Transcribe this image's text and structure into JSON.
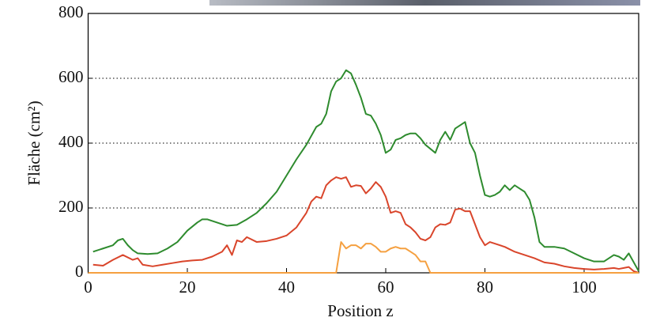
{
  "chart_data": {
    "type": "line",
    "x_label": "Position z",
    "y_label": "Fläche (cm²)",
    "xlim": [
      0,
      111
    ],
    "ylim": [
      0,
      800
    ],
    "xticks": [
      0,
      20,
      40,
      60,
      80,
      100
    ],
    "yticks": [
      0,
      200,
      400,
      600,
      800
    ],
    "grid": true,
    "series": [
      {
        "color": "#2e8b2e",
        "x": [
          1,
          3,
          5,
          6,
          7,
          8,
          9,
          10,
          12,
          14,
          16,
          18,
          20,
          22,
          23,
          24,
          26,
          28,
          30,
          32,
          34,
          36,
          38,
          40,
          42,
          44,
          46,
          47,
          48,
          49,
          50,
          51,
          52,
          53,
          54,
          55,
          56,
          57,
          58,
          59,
          60,
          61,
          62,
          63,
          64,
          65,
          66,
          67,
          68,
          70,
          71,
          72,
          73,
          74,
          76,
          77,
          78,
          79,
          80,
          81,
          82,
          83,
          84,
          85,
          86,
          87,
          88,
          89,
          90,
          91,
          92,
          94,
          96,
          98,
          100,
          102,
          104,
          106,
          107,
          108,
          109,
          111
        ],
        "values": [
          65,
          75,
          85,
          100,
          105,
          85,
          70,
          60,
          58,
          60,
          75,
          95,
          130,
          155,
          165,
          165,
          155,
          145,
          148,
          165,
          185,
          215,
          250,
          300,
          350,
          395,
          450,
          460,
          490,
          560,
          590,
          600,
          625,
          615,
          580,
          540,
          490,
          485,
          460,
          425,
          370,
          380,
          410,
          415,
          425,
          430,
          430,
          415,
          395,
          370,
          410,
          435,
          410,
          445,
          465,
          400,
          370,
          300,
          240,
          235,
          240,
          250,
          270,
          255,
          270,
          260,
          250,
          225,
          170,
          95,
          80,
          80,
          75,
          60,
          45,
          35,
          35,
          55,
          50,
          40,
          60,
          5
        ]
      },
      {
        "color": "#d9452b",
        "x": [
          1,
          3,
          5,
          7,
          9,
          10,
          11,
          13,
          15,
          17,
          19,
          21,
          23,
          25,
          27,
          28,
          29,
          30,
          31,
          32,
          34,
          36,
          38,
          40,
          42,
          44,
          45,
          46,
          47,
          48,
          49,
          50,
          51,
          52,
          53,
          54,
          55,
          56,
          57,
          58,
          59,
          60,
          61,
          62,
          63,
          64,
          65,
          66,
          67,
          68,
          69,
          70,
          71,
          72,
          73,
          74,
          75,
          76,
          77,
          78,
          79,
          80,
          81,
          82,
          84,
          86,
          88,
          90,
          92,
          94,
          96,
          98,
          100,
          102,
          104,
          106,
          107,
          108,
          109,
          110,
          111
        ],
        "values": [
          25,
          22,
          40,
          55,
          40,
          45,
          25,
          20,
          25,
          30,
          35,
          38,
          40,
          50,
          65,
          85,
          55,
          100,
          95,
          110,
          95,
          98,
          105,
          115,
          140,
          185,
          220,
          235,
          230,
          270,
          285,
          295,
          290,
          295,
          265,
          270,
          268,
          245,
          260,
          280,
          265,
          235,
          185,
          190,
          185,
          150,
          140,
          125,
          105,
          100,
          110,
          140,
          150,
          148,
          155,
          195,
          198,
          190,
          190,
          150,
          110,
          85,
          95,
          90,
          80,
          65,
          55,
          45,
          32,
          28,
          20,
          15,
          12,
          10,
          12,
          15,
          12,
          15,
          18,
          5,
          0
        ]
      },
      {
        "color": "#f5a040",
        "x": [
          0,
          50,
          51,
          52,
          53,
          54,
          55,
          56,
          57,
          58,
          59,
          60,
          61,
          62,
          63,
          64,
          65,
          66,
          67,
          68,
          69,
          111
        ],
        "values": [
          0,
          0,
          95,
          75,
          85,
          85,
          75,
          90,
          90,
          80,
          65,
          65,
          75,
          80,
          75,
          75,
          65,
          55,
          35,
          35,
          0,
          0
        ]
      }
    ]
  }
}
